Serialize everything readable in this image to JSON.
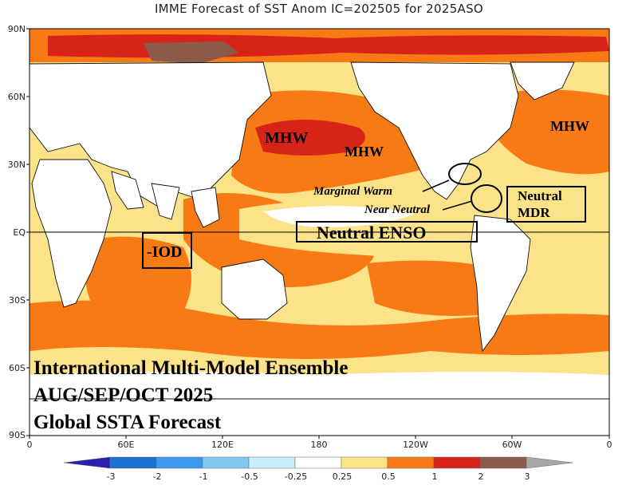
{
  "map": {
    "title": "IMME Forecast of SST Anom IC=202505 for 2025ASO",
    "lat_ticks": [
      "90N",
      "60N",
      "30N",
      "EQ",
      "30S",
      "60S",
      "90S"
    ],
    "lon_ticks": [
      "0",
      "60E",
      "120E",
      "180",
      "120W",
      "60W",
      "0"
    ],
    "annotations": {
      "mhw_nw_pacific": "MHW",
      "mhw_ne_pacific": "MHW",
      "mhw_n_atlantic": "MHW",
      "marginal_warm": "Marginal Warm",
      "near_neutral": "Near Neutral",
      "neutral_mdr_line1": "Neutral",
      "neutral_mdr_line2": "MDR",
      "neutral_enso": "Neutral ENSO",
      "iod": "-IOD"
    },
    "caption": {
      "line1": "International Multi-Model Ensemble",
      "line2": "AUG/SEP/OCT 2025",
      "line3": "Global SSTA Forecast"
    }
  },
  "colorbar": {
    "ticks": [
      "-3",
      "-2",
      "-1",
      "-0.5",
      "-0.25",
      "0.25",
      "0.5",
      "1",
      "2",
      "3"
    ],
    "colors": [
      "#2b1fb0",
      "#1e6fd4",
      "#3c98ee",
      "#82c9f5",
      "#c8f0fa",
      "#ffffff",
      "#fce38a",
      "#f77a14",
      "#d82418",
      "#8b5a4a",
      "#a8a8a8"
    ]
  }
}
